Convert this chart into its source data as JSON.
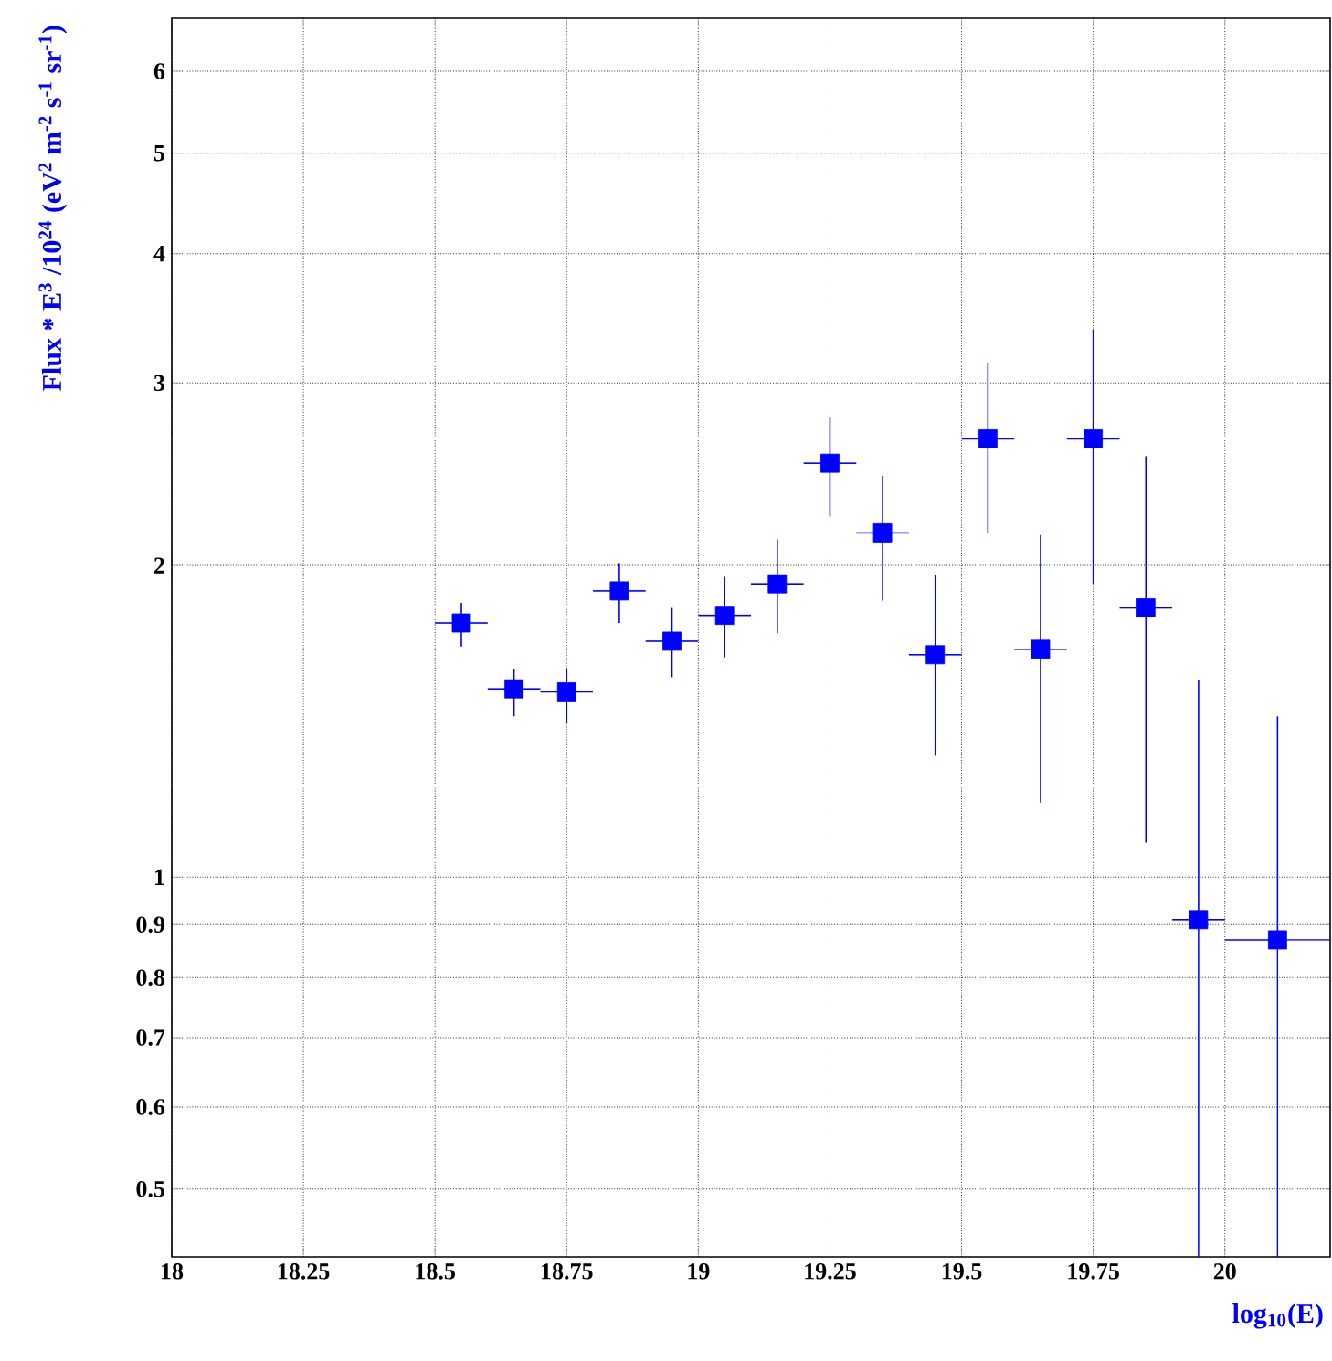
{
  "chart_data": {
    "type": "scatter",
    "xlabel": "log$_{10}$(E)",
    "ylabel": "Flux * E$^{3}$ /10$^{24}$  (eV$^{2}$ m$^{-2}$ s$^{-1}$ sr$^{-1}$)",
    "x": [
      18.55,
      18.65,
      18.75,
      18.85,
      18.95,
      19.05,
      19.15,
      19.25,
      19.35,
      19.45,
      19.55,
      19.65,
      19.75,
      19.85,
      19.95,
      20.1
    ],
    "series": [
      {
        "color": "#0000ff",
        "values": [
          1.76,
          1.52,
          1.51,
          1.89,
          1.69,
          1.79,
          1.92,
          2.51,
          2.15,
          1.64,
          2.65,
          1.66,
          2.65,
          1.82,
          0.91,
          0.87
        ],
        "errors": [
          [
            1.67,
            1.84
          ],
          [
            1.43,
            1.59
          ],
          [
            1.41,
            1.59
          ],
          [
            1.76,
            2.01
          ],
          [
            1.56,
            1.82
          ],
          [
            1.63,
            1.95
          ],
          [
            1.72,
            2.12
          ],
          [
            2.23,
            2.78
          ],
          [
            1.85,
            2.44
          ],
          [
            1.31,
            1.96
          ],
          [
            2.15,
            3.14
          ],
          [
            1.18,
            2.14
          ],
          [
            1.92,
            3.38
          ],
          [
            1.08,
            2.55
          ],
          [
            0.43,
            1.55
          ],
          [
            0.43,
            1.43
          ]
        ],
        "xerrors": [
          0.05,
          0.05,
          0.05,
          0.05,
          0.05,
          0.05,
          0.05,
          0.05,
          0.05,
          0.05,
          0.05,
          0.05,
          0.05,
          0.05,
          0.05,
          0.1
        ]
      }
    ],
    "xlim": [
      18,
      20.2
    ],
    "ylim": [
      0.43,
      6.75
    ],
    "xticks": [
      18,
      18.25,
      18.5,
      18.75,
      19,
      19.25,
      19.5,
      19.75,
      20
    ],
    "yticks": [
      0.5,
      0.6,
      0.7,
      0.8,
      0.9,
      1,
      2,
      3,
      4,
      5,
      6
    ],
    "log": "y",
    "grid": true,
    "marker": "square"
  }
}
